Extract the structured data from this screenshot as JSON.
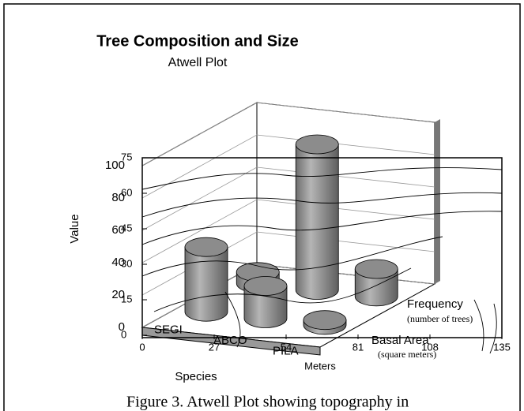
{
  "chart_data": {
    "type": "bar3d",
    "title": "Tree Composition and Size",
    "subtitle": "Atwell Plot",
    "x_label": "Species",
    "y_label": "Value",
    "categories": [
      "SEGI",
      "ABCO",
      "PILA"
    ],
    "series": [
      {
        "name": "Frequency",
        "unit": "(number of trees)",
        "color": "#8c8c8c",
        "values": [
          7,
          90,
          17
        ]
      },
      {
        "name": "Basal Area",
        "unit": "(square meters)",
        "color": "#8c8c8c",
        "values": [
          40,
          20,
          3
        ]
      }
    ],
    "ylim": [
      0,
      100
    ],
    "yticks": [
      0,
      20,
      40,
      60,
      80,
      100
    ],
    "grid": true,
    "map_label": "Meters",
    "map_xlim": [
      0,
      135
    ],
    "map_xticks": [
      0,
      27,
      54,
      81,
      108,
      135
    ],
    "map_ylim": [
      0,
      75
    ],
    "map_yticks": [
      0,
      15,
      30,
      45,
      60,
      75
    ],
    "caption": "Figure 3.  Atwell Plot showing topography in"
  }
}
